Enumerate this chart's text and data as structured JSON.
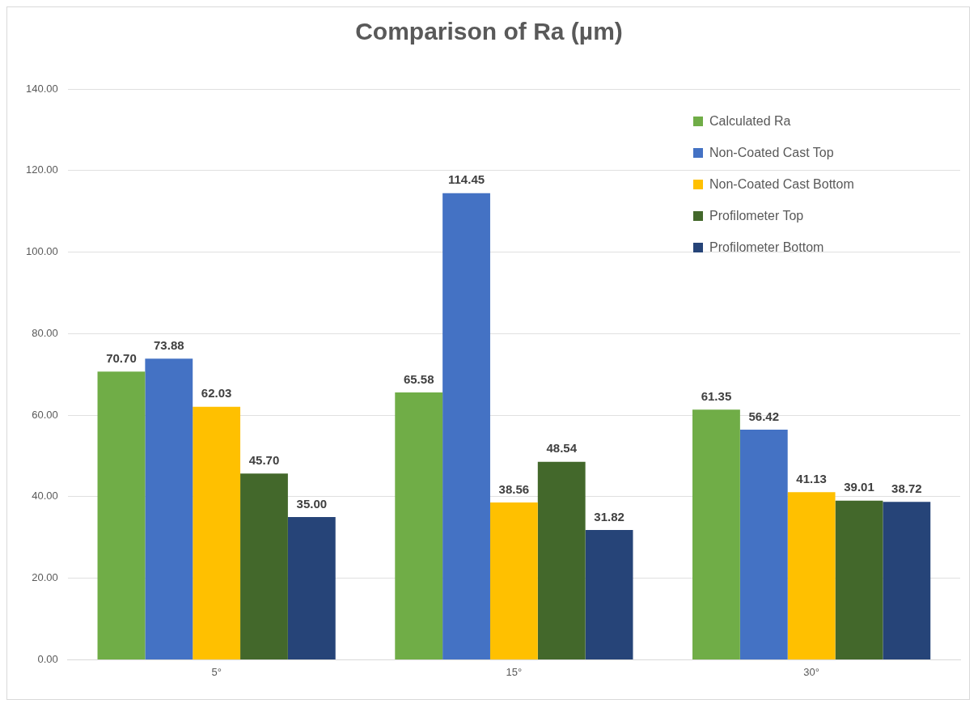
{
  "chart_data": {
    "type": "bar",
    "title": "Comparison of Ra (µm)",
    "categories": [
      "5°",
      "15°",
      "30°"
    ],
    "series": [
      {
        "name": "Calculated Ra",
        "color": "#70ad47",
        "values": [
          70.7,
          65.58,
          61.35
        ],
        "value_labels": [
          "70.70",
          "65.58",
          "61.35"
        ]
      },
      {
        "name": "Non-Coated Cast Top",
        "color": "#4472c4",
        "values": [
          73.88,
          114.45,
          56.42
        ],
        "value_labels": [
          "73.88",
          "114.45",
          "56.42"
        ]
      },
      {
        "name": "Non-Coated Cast Bottom",
        "color": "#ffc000",
        "values": [
          62.03,
          38.56,
          41.13
        ],
        "value_labels": [
          "62.03",
          "38.56",
          "41.13"
        ]
      },
      {
        "name": "Profilometer Top",
        "color": "#43682b",
        "values": [
          45.7,
          48.54,
          39.01
        ],
        "value_labels": [
          "45.70",
          "48.54",
          "39.01"
        ]
      },
      {
        "name": "Profilometer Bottom",
        "color": "#264478",
        "values": [
          35.0,
          31.82,
          38.72
        ],
        "value_labels": [
          "35.00",
          "31.82",
          "38.72"
        ]
      }
    ],
    "ylim": [
      0,
      140
    ],
    "yticks": [
      {
        "value": 0,
        "label": "0.00"
      },
      {
        "value": 20,
        "label": "20.00"
      },
      {
        "value": 40,
        "label": "40.00"
      },
      {
        "value": 60,
        "label": "60.00"
      },
      {
        "value": 80,
        "label": "80.00"
      },
      {
        "value": 100,
        "label": "100.00"
      },
      {
        "value": 120,
        "label": "120.00"
      },
      {
        "value": 140,
        "label": "140.00"
      }
    ],
    "grid": "y",
    "legend": "top right"
  }
}
